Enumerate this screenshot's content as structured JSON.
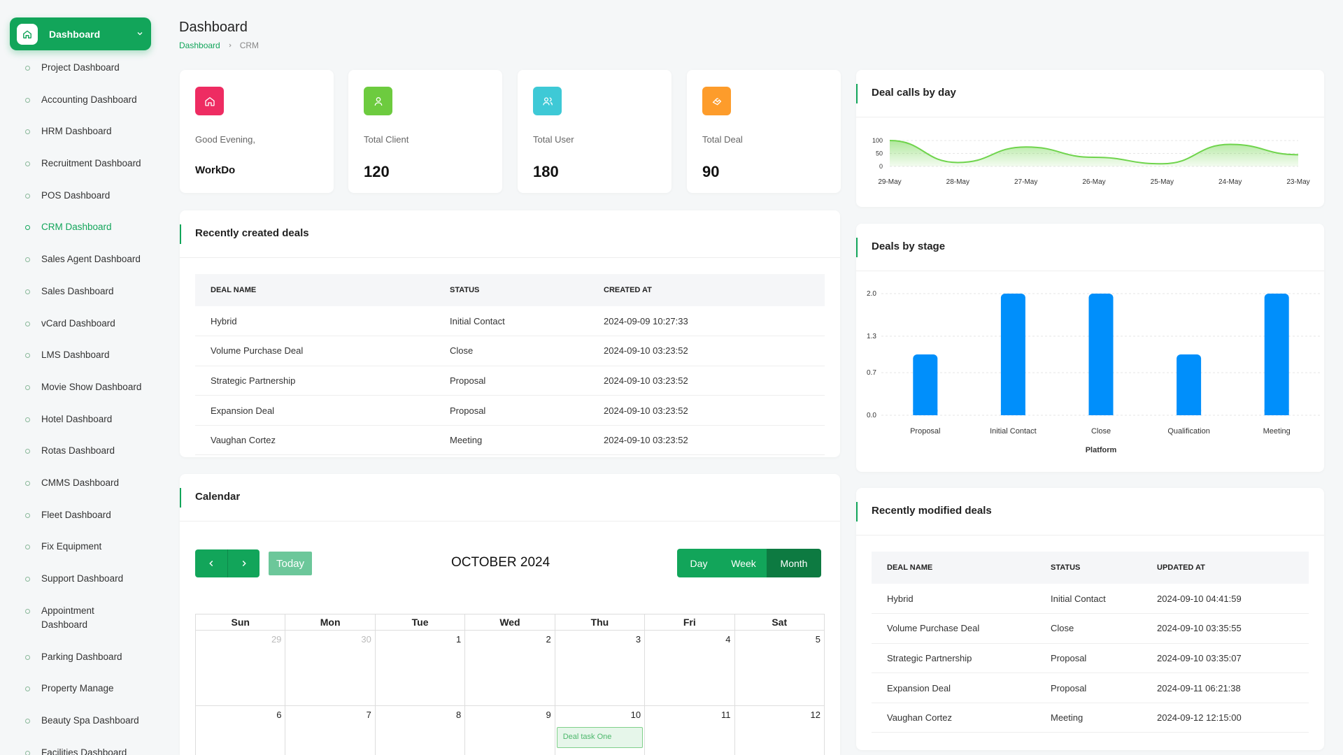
{
  "sidebar": {
    "active": {
      "label": "Dashboard"
    },
    "items": [
      {
        "label": "Project Dashboard"
      },
      {
        "label": "Accounting Dashboard"
      },
      {
        "label": "HRM Dashboard"
      },
      {
        "label": "Recruitment Dashboard"
      },
      {
        "label": "POS Dashboard"
      },
      {
        "label": "CRM Dashboard"
      },
      {
        "label": "Sales Agent Dashboard"
      },
      {
        "label": "Sales Dashboard"
      },
      {
        "label": "vCard Dashboard"
      },
      {
        "label": "LMS Dashboard"
      },
      {
        "label": "Movie Show Dashboard"
      },
      {
        "label": "Hotel Dashboard"
      },
      {
        "label": "Rotas Dashboard"
      },
      {
        "label": "CMMS Dashboard"
      },
      {
        "label": "Fleet Dashboard"
      },
      {
        "label": "Fix Equipment"
      },
      {
        "label": "Support Dashboard"
      },
      {
        "label": "Appointment Dashboard"
      },
      {
        "label": "Parking Dashboard"
      },
      {
        "label": "Property Manage"
      },
      {
        "label": "Beauty Spa Dashboard"
      },
      {
        "label": "Facilities Dashboard"
      }
    ]
  },
  "header": {
    "title": "Dashboard",
    "crumb1": "Dashboard",
    "crumb2": "CRM"
  },
  "stats": [
    {
      "label": "Good Evening,",
      "value": "WorkDo",
      "color": "#ee2c62"
    },
    {
      "label": "Total Client",
      "value": "120",
      "color": "#6dcb3f"
    },
    {
      "label": "Total User",
      "value": "180",
      "color": "#3ec9d6"
    },
    {
      "label": "Total Deal",
      "value": "90",
      "color": "#fd9c2b"
    }
  ],
  "recent_deals": {
    "title": "Recently created deals",
    "headers": [
      "DEAL NAME",
      "STATUS",
      "CREATED AT"
    ],
    "rows": [
      [
        "Hybrid",
        "Initial Contact",
        "2024-09-09 10:27:33"
      ],
      [
        "Volume Purchase Deal",
        "Close",
        "2024-09-10 03:23:52"
      ],
      [
        "Strategic Partnership",
        "Proposal",
        "2024-09-10 03:23:52"
      ],
      [
        "Expansion Deal",
        "Proposal",
        "2024-09-10 03:23:52"
      ],
      [
        "Vaughan Cortez",
        "Meeting",
        "2024-09-10 03:23:52"
      ]
    ]
  },
  "calendar": {
    "title": "Calendar",
    "today": "Today",
    "month_title": "OCTOBER 2024",
    "views": {
      "day": "Day",
      "week": "Week",
      "month": "Month"
    },
    "weekdays": [
      "Sun",
      "Mon",
      "Tue",
      "Wed",
      "Thu",
      "Fri",
      "Sat"
    ],
    "weeks": [
      [
        "29",
        "30",
        "1",
        "2",
        "3",
        "4",
        "5"
      ],
      [
        "6",
        "7",
        "8",
        "9",
        "10",
        "11",
        "12"
      ]
    ],
    "event": "Deal task One"
  },
  "deal_calls": {
    "title": "Deal calls by day"
  },
  "deals_by_stage": {
    "title": "Deals by stage"
  },
  "recent_modified": {
    "title": "Recently modified deals",
    "headers": [
      "DEAL NAME",
      "STATUS",
      "UPDATED AT"
    ],
    "rows": [
      [
        "Hybrid",
        "Initial Contact",
        "2024-09-10 04:41:59"
      ],
      [
        "Volume Purchase Deal",
        "Close",
        "2024-09-10 03:35:55"
      ],
      [
        "Strategic Partnership",
        "Proposal",
        "2024-09-10 03:35:07"
      ],
      [
        "Expansion Deal",
        "Proposal",
        "2024-09-11 06:21:38"
      ],
      [
        "Vaughan Cortez",
        "Meeting",
        "2024-09-12 12:15:00"
      ]
    ]
  },
  "chart_data": [
    {
      "type": "area",
      "title": "",
      "categories": [
        "29-May",
        "28-May",
        "27-May",
        "26-May",
        "25-May",
        "24-May",
        "23-May"
      ],
      "values": [
        100,
        15,
        75,
        35,
        10,
        85,
        45
      ],
      "yticks": [
        0,
        50,
        100
      ],
      "ylim": [
        0,
        100
      ],
      "color": "#6fd44c"
    },
    {
      "type": "bar",
      "title": "",
      "categories": [
        "Proposal",
        "Initial Contact",
        "Close",
        "Qualification",
        "Meeting"
      ],
      "values": [
        1,
        2,
        2,
        1,
        2
      ],
      "xlabel": "Platform",
      "yticks": [
        "0.0",
        "0.7",
        "1.3",
        "2.0"
      ],
      "ylim": [
        0,
        2
      ],
      "color": "#008ffb"
    }
  ]
}
